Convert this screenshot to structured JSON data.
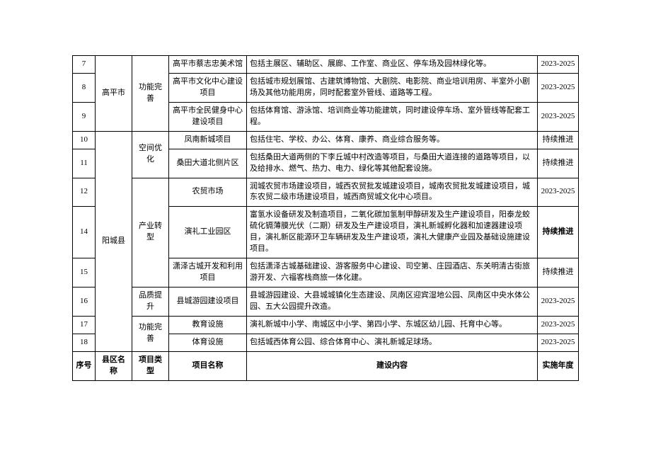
{
  "rows": [
    {
      "num": "7",
      "county": "高平市",
      "type": "功能完善",
      "name": "高平市蔡志忠美术馆",
      "desc": "包括主展区、辅助区、展廊、工作室、商业区、停车场及园林绿化等。",
      "year": "2023-2025"
    },
    {
      "num": "8",
      "name": "高平市文化中心建设项目",
      "desc": "包括城市规划展馆、古建筑博物馆、大剧院、电影院、商业培训用房、半室外小剧场及其他功能用房，同时配套室外管线、道路等工程。",
      "year": "2023-2025"
    },
    {
      "num": "9",
      "name": "高平市全民健身中心建设项目",
      "desc": "包括体育馆、游泳馆、培训商业等功能建筑，同时建设停车场、室外管线等配套工程。",
      "year": "2023-2025"
    },
    {
      "num": "10",
      "county": "阳城县",
      "type": "空间优化",
      "name": "凤南新城项目",
      "desc": "包括住宅、学校、办公、体育、康养、商业综合服务等。",
      "year": "持续推进"
    },
    {
      "num": "11",
      "name": "桑田大道北侧片区",
      "desc": "包括桑田大道两侧的下李丘城中村改造等项目，与桑田大道连接的道路等项目，以及给排水、燃气、热力、电力、绿化等其他配套设施。",
      "year": "持续推进"
    },
    {
      "num": "12",
      "type": "产业转型",
      "name": "农贸市场",
      "desc": "润城农贸市场建设项目，城西农贸批发城建设项目，城南农贸批发城建设项目，城东农贸二级市场建设项目，城西商贸城文化中心项目。",
      "year": "2023-2025"
    },
    {
      "num": "14",
      "name": "演礼工业园区",
      "desc": "富氢水设备研发及制造项目，二氧化碳加氢制甲醇研发及生产建设项目，阳泰龙蛟硫化镉薄膜光伏（二期）研发及生产建设项目，演礼新城孵化器和加速器建设项目，演礼新区能源环卫车辆研发及生产建设项，演礼大健康产业园及基础设施建设项目。",
      "year": "持续推进",
      "year_bold": true
    },
    {
      "num": "15",
      "name": "潇泽古城开发和利用项目",
      "desc": "包括潇泽古城基础建设、游客服务中心建设、司空第、庄园酒店、东关明清古街旅游开发、六福客栈商旅一体化建。",
      "year": "持续推进"
    },
    {
      "num": "16",
      "type": "品质提升",
      "name": "县城游园建设项目",
      "desc": "县城游园建设、大县城城镇化生态建设、凤南区迎宾湿地公园、凤南区中央水体公园、五大公园提升改造。",
      "year": "2023-2025"
    },
    {
      "num": "17",
      "type": "功能完善",
      "name": "教育设施",
      "desc": "演礼新城中小学、南城区中小学、第四小学、东城区幼儿园、托育中心等。",
      "year": "2023-2025"
    },
    {
      "num": "18",
      "name": "体育设施",
      "desc": "包括城西体育公园、综合体育中心、演礼新城足球场。",
      "year": "2023-2025"
    }
  ],
  "header": {
    "num": "序号",
    "county": "县区名称",
    "type": "项目类型",
    "name": "项目名称",
    "desc": "建设内容",
    "year": "实施年度"
  }
}
